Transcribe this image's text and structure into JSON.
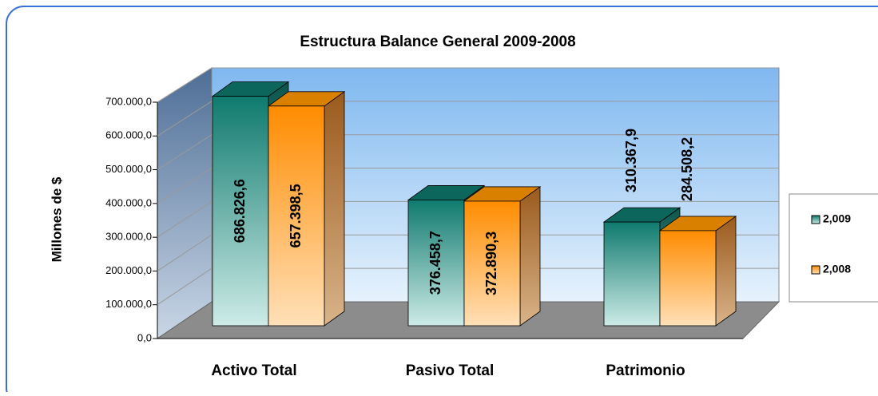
{
  "chart_data": {
    "type": "bar3d",
    "title": "Estructura Balance General 2009-2008",
    "ylabel": "Millones de $",
    "categories": [
      "Activo Total",
      "Pasivo Total",
      "Patrimonio"
    ],
    "series": [
      {
        "name": "2,009",
        "color": "#0f7a6e",
        "values": [
          686826.6,
          376458.7,
          310367.9
        ],
        "value_labels": [
          "686.826,6",
          "376.458,7",
          "310.367,9"
        ]
      },
      {
        "name": "2,008",
        "color": "#ff8c00",
        "values": [
          657398.5,
          372890.3,
          284508.2
        ],
        "value_labels": [
          "657.398,5",
          "372.890,3",
          "284.508,2"
        ]
      }
    ],
    "ylim": [
      0,
      700000
    ],
    "yticks": [
      {
        "value": 0,
        "label": "0,0"
      },
      {
        "value": 100000,
        "label": "100.000,0"
      },
      {
        "value": 200000,
        "label": "200.000,0"
      },
      {
        "value": 300000,
        "label": "300.000,0"
      },
      {
        "value": 400000,
        "label": "400.000,0"
      },
      {
        "value": 500000,
        "label": "500.000,0"
      },
      {
        "value": 600000,
        "label": "600.000,0"
      },
      {
        "value": 700000,
        "label": "700.000,0"
      }
    ],
    "grid": true,
    "legend": "right"
  }
}
